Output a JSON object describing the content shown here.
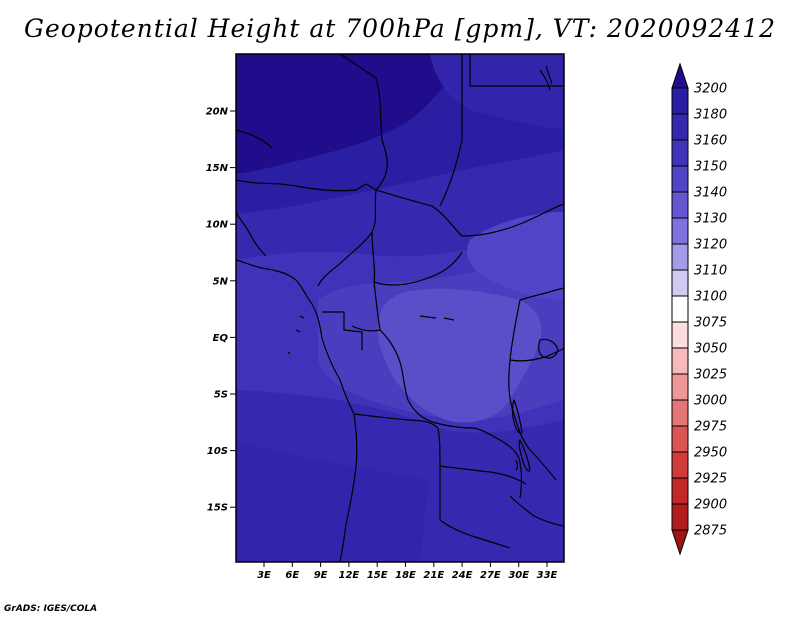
{
  "title": "Geopotential Height at 700hPa [gpm], VT: 2020092412",
  "footer": "GrADS: IGES/COLA",
  "map": {
    "lat_ticks": [
      "20N",
      "15N",
      "10N",
      "5N",
      "EQ",
      "5S",
      "10S",
      "15S"
    ],
    "lon_ticks": [
      "3E",
      "6E",
      "9E",
      "12E",
      "15E",
      "18E",
      "21E",
      "24E",
      "27E",
      "30E",
      "33E"
    ]
  },
  "colorbar": {
    "labels": [
      "3200",
      "3180",
      "3160",
      "3150",
      "3140",
      "3130",
      "3120",
      "3110",
      "3100",
      "3075",
      "3050",
      "3025",
      "3000",
      "2975",
      "2950",
      "2925",
      "2900",
      "2875"
    ],
    "colors": [
      "#1f0d8c",
      "#2a1ea3",
      "#3629b0",
      "#4033b9",
      "#5045c6",
      "#6557d3",
      "#7f71e0",
      "#a49cea",
      "#cfcbf3",
      "#ffffff",
      "#fcdcdc",
      "#f6baba",
      "#ef9797",
      "#e67575",
      "#dd5454",
      "#d13b3b",
      "#c32828",
      "#b01b1b",
      "#9e1313"
    ],
    "field_colors": {
      "c3200": "#1f0d8c",
      "c3180": "#2a1ea3",
      "c3170": "#3325ab",
      "c3160": "#3629b0",
      "c3150": "#4033b9",
      "c3145": "#4a3ebf",
      "c3140": "#5045c6",
      "c3135": "#5a4ec9",
      "c3130": "#6557d3"
    }
  }
}
